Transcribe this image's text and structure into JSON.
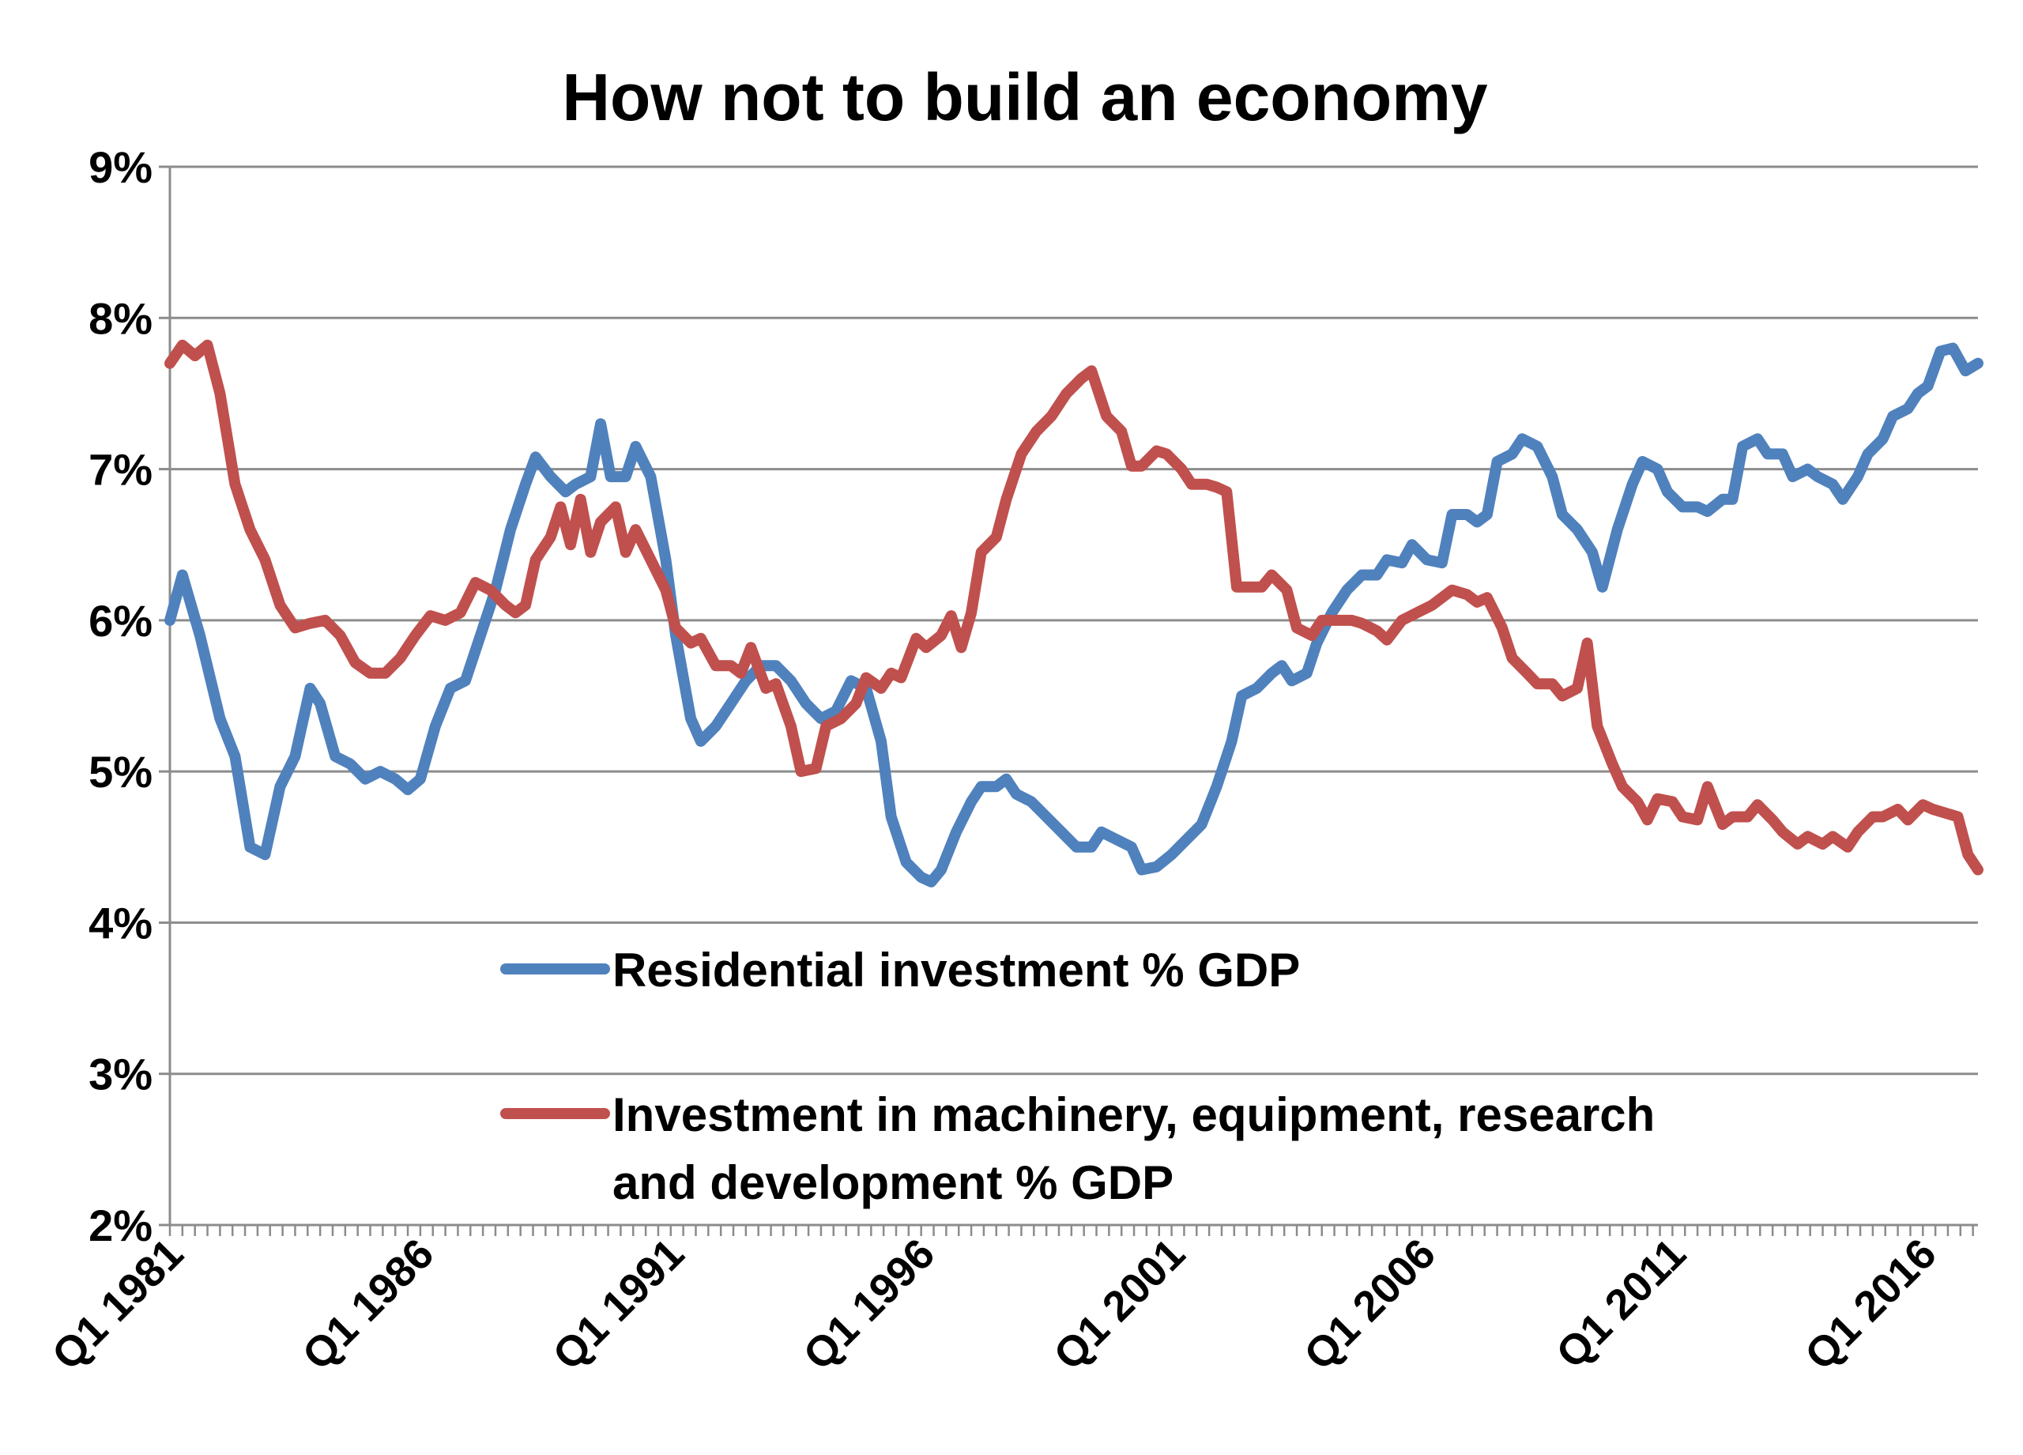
{
  "chart_data": {
    "type": "line",
    "title": "How not to build an economy",
    "xlabel": "",
    "ylabel": "",
    "ylim": [
      2,
      9
    ],
    "xlim": [
      1981,
      2017.1
    ],
    "y_ticks": [
      "2%",
      "3%",
      "4%",
      "5%",
      "6%",
      "7%",
      "8%",
      "9%"
    ],
    "y_tick_values": [
      2,
      3,
      4,
      5,
      6,
      7,
      8,
      9
    ],
    "x_ticks": [
      "Q1 1981",
      "Q1 1986",
      "Q1 1991",
      "Q1 1996",
      "Q1 2001",
      "Q1 2006",
      "Q1 2011",
      "Q1 2016"
    ],
    "x_tick_values": [
      1981,
      1986,
      1991,
      1996,
      2001,
      2006,
      2011,
      2016
    ],
    "grid": true,
    "legend_placement": "bottom-center inside",
    "series": [
      {
        "name": "Residential investment % GDP",
        "color": "#4F81BD",
        "points": [
          [
            1981.0,
            6.0
          ],
          [
            1981.25,
            6.3
          ],
          [
            1981.6,
            5.9
          ],
          [
            1982.0,
            5.35
          ],
          [
            1982.3,
            5.1
          ],
          [
            1982.6,
            4.5
          ],
          [
            1982.9,
            4.45
          ],
          [
            1983.2,
            4.9
          ],
          [
            1983.5,
            5.1
          ],
          [
            1983.8,
            5.55
          ],
          [
            1984.0,
            5.45
          ],
          [
            1984.3,
            5.1
          ],
          [
            1984.6,
            5.05
          ],
          [
            1984.9,
            4.95
          ],
          [
            1985.2,
            5.0
          ],
          [
            1985.5,
            4.95
          ],
          [
            1985.75,
            4.88
          ],
          [
            1986.0,
            4.95
          ],
          [
            1986.3,
            5.3
          ],
          [
            1986.6,
            5.55
          ],
          [
            1986.9,
            5.6
          ],
          [
            1987.2,
            5.9
          ],
          [
            1987.5,
            6.2
          ],
          [
            1987.8,
            6.6
          ],
          [
            1988.1,
            6.9
          ],
          [
            1988.3,
            7.08
          ],
          [
            1988.6,
            6.95
          ],
          [
            1988.9,
            6.85
          ],
          [
            1989.1,
            6.9
          ],
          [
            1989.4,
            6.95
          ],
          [
            1989.6,
            7.3
          ],
          [
            1989.8,
            6.95
          ],
          [
            1990.1,
            6.95
          ],
          [
            1990.3,
            7.15
          ],
          [
            1990.6,
            6.95
          ],
          [
            1990.9,
            6.4
          ],
          [
            1991.1,
            5.9
          ],
          [
            1991.4,
            5.35
          ],
          [
            1991.6,
            5.2
          ],
          [
            1991.9,
            5.3
          ],
          [
            1992.2,
            5.45
          ],
          [
            1992.5,
            5.6
          ],
          [
            1992.8,
            5.7
          ],
          [
            1993.1,
            5.7
          ],
          [
            1993.4,
            5.6
          ],
          [
            1993.7,
            5.45
          ],
          [
            1994.0,
            5.35
          ],
          [
            1994.3,
            5.4
          ],
          [
            1994.6,
            5.6
          ],
          [
            1994.9,
            5.55
          ],
          [
            1995.2,
            5.2
          ],
          [
            1995.4,
            4.7
          ],
          [
            1995.7,
            4.4
          ],
          [
            1996.0,
            4.3
          ],
          [
            1996.2,
            4.27
          ],
          [
            1996.4,
            4.35
          ],
          [
            1996.7,
            4.6
          ],
          [
            1997.0,
            4.8
          ],
          [
            1997.2,
            4.9
          ],
          [
            1997.5,
            4.9
          ],
          [
            1997.7,
            4.95
          ],
          [
            1997.9,
            4.85
          ],
          [
            1998.2,
            4.8
          ],
          [
            1998.5,
            4.7
          ],
          [
            1998.8,
            4.6
          ],
          [
            1999.1,
            4.5
          ],
          [
            1999.4,
            4.5
          ],
          [
            1999.6,
            4.6
          ],
          [
            1999.9,
            4.55
          ],
          [
            2000.2,
            4.5
          ],
          [
            2000.4,
            4.35
          ],
          [
            2000.7,
            4.37
          ],
          [
            2001.0,
            4.45
          ],
          [
            2001.3,
            4.55
          ],
          [
            2001.6,
            4.65
          ],
          [
            2001.9,
            4.9
          ],
          [
            2002.2,
            5.2
          ],
          [
            2002.4,
            5.5
          ],
          [
            2002.7,
            5.55
          ],
          [
            2003.0,
            5.65
          ],
          [
            2003.2,
            5.7
          ],
          [
            2003.4,
            5.6
          ],
          [
            2003.7,
            5.65
          ],
          [
            2003.9,
            5.85
          ],
          [
            2004.2,
            6.05
          ],
          [
            2004.5,
            6.2
          ],
          [
            2004.8,
            6.3
          ],
          [
            2005.1,
            6.3
          ],
          [
            2005.3,
            6.4
          ],
          [
            2005.6,
            6.38
          ],
          [
            2005.8,
            6.5
          ],
          [
            2006.1,
            6.4
          ],
          [
            2006.4,
            6.38
          ],
          [
            2006.6,
            6.7
          ],
          [
            2006.9,
            6.7
          ],
          [
            2007.1,
            6.65
          ],
          [
            2007.3,
            6.7
          ],
          [
            2007.5,
            7.05
          ],
          [
            2007.8,
            7.1
          ],
          [
            2008.0,
            7.2
          ],
          [
            2008.3,
            7.15
          ],
          [
            2008.6,
            6.95
          ],
          [
            2008.8,
            6.7
          ],
          [
            2009.1,
            6.6
          ],
          [
            2009.4,
            6.45
          ],
          [
            2009.6,
            6.22
          ],
          [
            2009.9,
            6.6
          ],
          [
            2010.2,
            6.9
          ],
          [
            2010.4,
            7.05
          ],
          [
            2010.7,
            7.0
          ],
          [
            2010.9,
            6.85
          ],
          [
            2011.2,
            6.75
          ],
          [
            2011.5,
            6.75
          ],
          [
            2011.7,
            6.72
          ],
          [
            2012.0,
            6.8
          ],
          [
            2012.2,
            6.8
          ],
          [
            2012.4,
            7.15
          ],
          [
            2012.7,
            7.2
          ],
          [
            2012.9,
            7.1
          ],
          [
            2013.2,
            7.1
          ],
          [
            2013.4,
            6.95
          ],
          [
            2013.7,
            7.0
          ],
          [
            2013.9,
            6.95
          ],
          [
            2014.2,
            6.9
          ],
          [
            2014.4,
            6.8
          ],
          [
            2014.7,
            6.95
          ],
          [
            2014.9,
            7.1
          ],
          [
            2015.2,
            7.2
          ],
          [
            2015.4,
            7.35
          ],
          [
            2015.7,
            7.4
          ],
          [
            2015.9,
            7.5
          ],
          [
            2016.1,
            7.55
          ],
          [
            2016.35,
            7.78
          ],
          [
            2016.6,
            7.8
          ],
          [
            2016.85,
            7.65
          ],
          [
            2017.1,
            7.7
          ]
        ]
      },
      {
        "name": "Investment in machinery, equipment, research and development % GDP",
        "legend_lines": [
          "Investment in machinery, equipment, research",
          "and development % GDP"
        ],
        "color": "#C0504D",
        "points": [
          [
            1981.0,
            7.7
          ],
          [
            1981.25,
            7.82
          ],
          [
            1981.5,
            7.75
          ],
          [
            1981.75,
            7.82
          ],
          [
            1982.0,
            7.5
          ],
          [
            1982.3,
            6.9
          ],
          [
            1982.6,
            6.6
          ],
          [
            1982.9,
            6.4
          ],
          [
            1983.2,
            6.1
          ],
          [
            1983.5,
            5.95
          ],
          [
            1983.8,
            5.98
          ],
          [
            1984.1,
            6.0
          ],
          [
            1984.4,
            5.9
          ],
          [
            1984.7,
            5.72
          ],
          [
            1985.0,
            5.65
          ],
          [
            1985.3,
            5.65
          ],
          [
            1985.6,
            5.75
          ],
          [
            1985.9,
            5.9
          ],
          [
            1986.2,
            6.03
          ],
          [
            1986.5,
            6.0
          ],
          [
            1986.8,
            6.05
          ],
          [
            1987.1,
            6.25
          ],
          [
            1987.4,
            6.2
          ],
          [
            1987.7,
            6.1
          ],
          [
            1987.9,
            6.05
          ],
          [
            1988.1,
            6.1
          ],
          [
            1988.3,
            6.4
          ],
          [
            1988.6,
            6.55
          ],
          [
            1988.8,
            6.75
          ],
          [
            1989.0,
            6.5
          ],
          [
            1989.2,
            6.8
          ],
          [
            1989.4,
            6.45
          ],
          [
            1989.6,
            6.65
          ],
          [
            1989.9,
            6.75
          ],
          [
            1990.1,
            6.45
          ],
          [
            1990.3,
            6.6
          ],
          [
            1990.6,
            6.4
          ],
          [
            1990.9,
            6.2
          ],
          [
            1991.1,
            5.95
          ],
          [
            1991.4,
            5.85
          ],
          [
            1991.6,
            5.88
          ],
          [
            1991.9,
            5.7
          ],
          [
            1992.2,
            5.7
          ],
          [
            1992.4,
            5.65
          ],
          [
            1992.6,
            5.82
          ],
          [
            1992.9,
            5.55
          ],
          [
            1993.1,
            5.58
          ],
          [
            1993.4,
            5.3
          ],
          [
            1993.6,
            5.0
          ],
          [
            1993.9,
            5.02
          ],
          [
            1994.1,
            5.3
          ],
          [
            1994.4,
            5.35
          ],
          [
            1994.7,
            5.45
          ],
          [
            1994.9,
            5.62
          ],
          [
            1995.2,
            5.55
          ],
          [
            1995.4,
            5.65
          ],
          [
            1995.6,
            5.62
          ],
          [
            1995.9,
            5.88
          ],
          [
            1996.1,
            5.82
          ],
          [
            1996.4,
            5.9
          ],
          [
            1996.6,
            6.03
          ],
          [
            1996.8,
            5.82
          ],
          [
            1997.0,
            6.05
          ],
          [
            1997.2,
            6.45
          ],
          [
            1997.5,
            6.55
          ],
          [
            1997.7,
            6.8
          ],
          [
            1998.0,
            7.1
          ],
          [
            1998.3,
            7.25
          ],
          [
            1998.6,
            7.35
          ],
          [
            1998.9,
            7.5
          ],
          [
            1999.2,
            7.6
          ],
          [
            1999.4,
            7.65
          ],
          [
            1999.7,
            7.35
          ],
          [
            2000.0,
            7.25
          ],
          [
            2000.2,
            7.02
          ],
          [
            2000.4,
            7.02
          ],
          [
            2000.7,
            7.12
          ],
          [
            2000.9,
            7.1
          ],
          [
            2001.2,
            7.0
          ],
          [
            2001.4,
            6.9
          ],
          [
            2001.7,
            6.9
          ],
          [
            2001.9,
            6.88
          ],
          [
            2002.1,
            6.85
          ],
          [
            2002.3,
            6.22
          ],
          [
            2002.6,
            6.22
          ],
          [
            2002.8,
            6.22
          ],
          [
            2003.0,
            6.3
          ],
          [
            2003.3,
            6.2
          ],
          [
            2003.5,
            5.95
          ],
          [
            2003.8,
            5.9
          ],
          [
            2004.0,
            6.0
          ],
          [
            2004.3,
            6.0
          ],
          [
            2004.6,
            6.0
          ],
          [
            2004.8,
            5.98
          ],
          [
            2005.1,
            5.93
          ],
          [
            2005.3,
            5.87
          ],
          [
            2005.6,
            6.0
          ],
          [
            2005.9,
            6.05
          ],
          [
            2006.2,
            6.1
          ],
          [
            2006.4,
            6.15
          ],
          [
            2006.6,
            6.2
          ],
          [
            2006.9,
            6.17
          ],
          [
            2007.1,
            6.12
          ],
          [
            2007.3,
            6.15
          ],
          [
            2007.6,
            5.95
          ],
          [
            2007.8,
            5.75
          ],
          [
            2008.1,
            5.65
          ],
          [
            2008.3,
            5.58
          ],
          [
            2008.6,
            5.58
          ],
          [
            2008.8,
            5.5
          ],
          [
            2009.1,
            5.55
          ],
          [
            2009.3,
            5.85
          ],
          [
            2009.5,
            5.3
          ],
          [
            2009.8,
            5.05
          ],
          [
            2010.0,
            4.9
          ],
          [
            2010.3,
            4.8
          ],
          [
            2010.5,
            4.68
          ],
          [
            2010.7,
            4.82
          ],
          [
            2011.0,
            4.8
          ],
          [
            2011.2,
            4.7
          ],
          [
            2011.5,
            4.68
          ],
          [
            2011.7,
            4.9
          ],
          [
            2012.0,
            4.65
          ],
          [
            2012.2,
            4.7
          ],
          [
            2012.5,
            4.7
          ],
          [
            2012.7,
            4.78
          ],
          [
            2013.0,
            4.68
          ],
          [
            2013.2,
            4.6
          ],
          [
            2013.5,
            4.52
          ],
          [
            2013.7,
            4.57
          ],
          [
            2014.0,
            4.52
          ],
          [
            2014.2,
            4.57
          ],
          [
            2014.5,
            4.5
          ],
          [
            2014.7,
            4.6
          ],
          [
            2015.0,
            4.7
          ],
          [
            2015.2,
            4.7
          ],
          [
            2015.5,
            4.75
          ],
          [
            2015.7,
            4.68
          ],
          [
            2016.0,
            4.78
          ],
          [
            2016.2,
            4.75
          ],
          [
            2016.5,
            4.72
          ],
          [
            2016.7,
            4.7
          ],
          [
            2016.9,
            4.45
          ],
          [
            2017.1,
            4.35
          ]
        ]
      }
    ]
  }
}
